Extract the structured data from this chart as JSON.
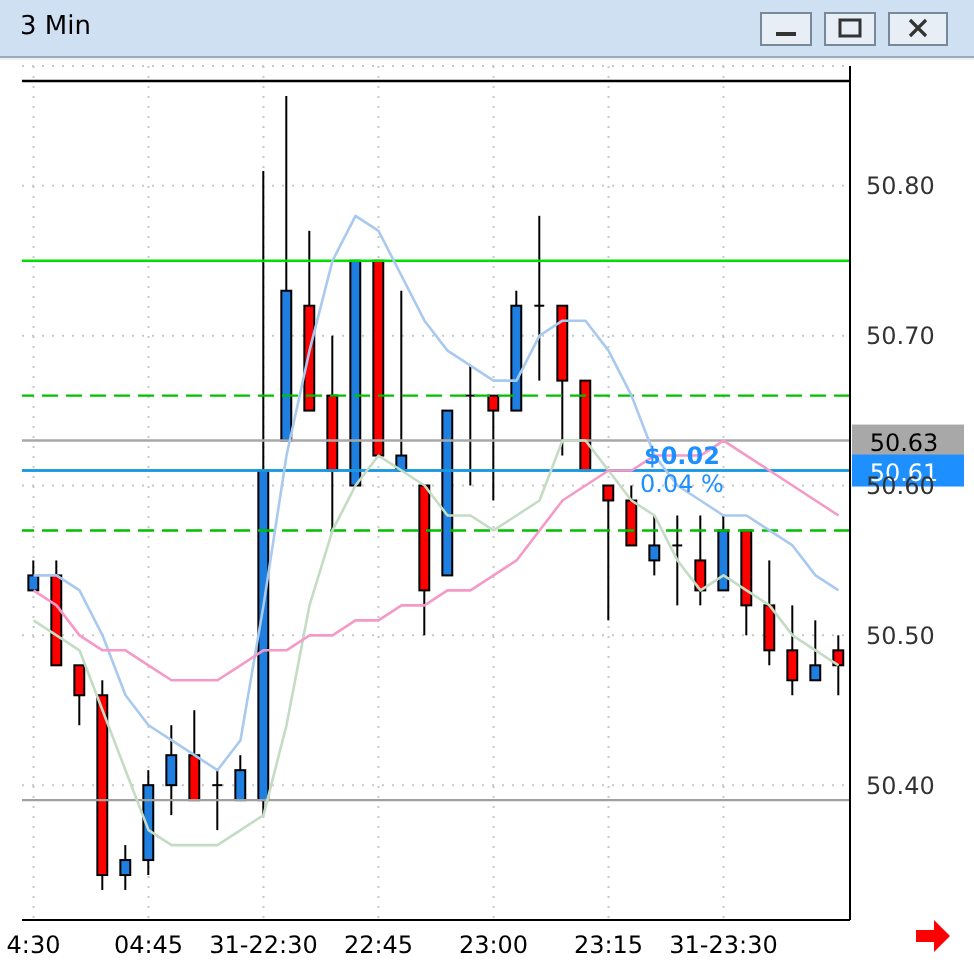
{
  "chart_data": {
    "type": "candlestick",
    "title": "3 Min",
    "categories": [
      "4:30",
      null,
      null,
      null,
      null,
      "04:45",
      null,
      null,
      null,
      null,
      "31-22:30",
      null,
      null,
      null,
      null,
      "22:45",
      null,
      null,
      null,
      null,
      "23:00",
      null,
      null,
      null,
      null,
      "23:15",
      null,
      null,
      null,
      null,
      "31-23:30",
      null,
      null,
      null,
      null,
      null
    ],
    "ohlc": [
      [
        50.53,
        50.55,
        50.53,
        50.54
      ],
      [
        50.54,
        50.55,
        50.48,
        50.48
      ],
      [
        50.48,
        50.48,
        50.44,
        50.46
      ],
      [
        50.46,
        50.47,
        50.33,
        50.34
      ],
      [
        50.34,
        50.36,
        50.33,
        50.35
      ],
      [
        50.35,
        50.41,
        50.34,
        50.4
      ],
      [
        50.4,
        50.44,
        50.38,
        50.42
      ],
      [
        50.42,
        50.45,
        50.39,
        50.39
      ],
      [
        50.4,
        50.41,
        50.37,
        50.4
      ],
      [
        50.39,
        50.42,
        50.39,
        50.41
      ],
      [
        50.39,
        50.81,
        50.38,
        50.61
      ],
      [
        50.63,
        50.86,
        50.63,
        50.73
      ],
      [
        50.72,
        50.77,
        50.65,
        50.65
      ],
      [
        50.66,
        50.7,
        50.57,
        50.61
      ],
      [
        50.6,
        50.75,
        50.6,
        50.75
      ],
      [
        50.75,
        50.75,
        50.62,
        50.62
      ],
      [
        50.61,
        50.73,
        50.61,
        50.62
      ],
      [
        50.6,
        50.6,
        50.5,
        50.53
      ],
      [
        50.54,
        50.65,
        50.54,
        50.65
      ],
      [
        50.66,
        50.68,
        50.6,
        50.66
      ],
      [
        50.66,
        50.66,
        50.59,
        50.65
      ],
      [
        50.65,
        50.73,
        50.65,
        50.72
      ],
      [
        50.72,
        50.78,
        50.67,
        50.72
      ],
      [
        50.72,
        50.72,
        50.62,
        50.67
      ],
      [
        50.67,
        50.67,
        50.61,
        50.61
      ],
      [
        50.6,
        50.6,
        50.51,
        50.59
      ],
      [
        50.59,
        50.6,
        50.56,
        50.56
      ],
      [
        50.55,
        50.58,
        50.54,
        50.56
      ],
      [
        50.56,
        50.58,
        50.52,
        50.56
      ],
      [
        50.55,
        50.58,
        50.52,
        50.53
      ],
      [
        50.53,
        50.58,
        50.53,
        50.57
      ],
      [
        50.57,
        50.57,
        50.5,
        50.52
      ],
      [
        50.52,
        50.55,
        50.48,
        50.49
      ],
      [
        50.49,
        50.52,
        50.46,
        50.47
      ],
      [
        50.47,
        50.51,
        50.47,
        50.48
      ],
      [
        50.49,
        50.5,
        50.46,
        50.48
      ]
    ],
    "colors": [
      "#1e7fe0",
      "#ff0000",
      "#ff0000",
      "#ff0000",
      "#1e7fe0",
      "#1e7fe0",
      "#1e7fe0",
      "#ff0000",
      "#000000",
      "#1e7fe0",
      "#1e7fe0",
      "#1e7fe0",
      "#ff0000",
      "#ff0000",
      "#1e7fe0",
      "#ff0000",
      "#1e7fe0",
      "#ff0000",
      "#1e7fe0",
      "#000000",
      "#ff0000",
      "#1e7fe0",
      "#000000",
      "#ff0000",
      "#ff0000",
      "#ff0000",
      "#ff0000",
      "#1e7fe0",
      "#000000",
      "#ff0000",
      "#1e7fe0",
      "#ff0000",
      "#ff0000",
      "#ff0000",
      "#1e7fe0",
      "#ff0000"
    ],
    "series": [
      {
        "type": "line",
        "color": "#a9c9ef",
        "values": [
          50.54,
          50.54,
          50.53,
          50.5,
          50.46,
          50.44,
          50.43,
          50.42,
          50.41,
          50.43,
          50.52,
          50.62,
          50.69,
          50.75,
          50.78,
          50.77,
          50.74,
          50.71,
          50.69,
          50.68,
          50.67,
          50.67,
          50.7,
          50.71,
          50.71,
          50.69,
          50.66,
          50.62,
          50.6,
          50.59,
          50.58,
          50.58,
          50.57,
          50.56,
          50.54,
          50.53
        ]
      },
      {
        "type": "line",
        "color": "#c3dcc3",
        "values": [
          50.51,
          50.5,
          50.49,
          50.45,
          50.41,
          50.37,
          50.36,
          50.36,
          50.36,
          50.37,
          50.38,
          50.44,
          50.52,
          50.57,
          50.6,
          50.62,
          50.61,
          50.6,
          50.58,
          50.58,
          50.57,
          50.58,
          50.59,
          50.63,
          50.63,
          50.61,
          50.59,
          50.58,
          50.55,
          50.53,
          50.54,
          50.53,
          50.52,
          50.5,
          50.49,
          50.48
        ]
      },
      {
        "type": "line",
        "color": "#f59ac8",
        "values": [
          50.53,
          50.52,
          50.5,
          50.49,
          50.49,
          50.48,
          50.47,
          50.47,
          50.47,
          50.48,
          50.49,
          50.49,
          50.5,
          50.5,
          50.51,
          50.51,
          50.52,
          50.52,
          50.53,
          50.53,
          50.54,
          50.55,
          50.57,
          50.59,
          50.6,
          50.61,
          50.61,
          50.62,
          50.62,
          50.62,
          50.63,
          50.62,
          50.61,
          50.6,
          50.59,
          50.58
        ]
      }
    ],
    "ref_lines": [
      {
        "axis": "y",
        "value": 50.87,
        "color": "#000000",
        "line_style": "solid"
      },
      {
        "axis": "y",
        "value": 50.75,
        "color": "#00e000",
        "line_style": "solid"
      },
      {
        "axis": "y",
        "value": 50.66,
        "color": "#00c000",
        "line_style": "dashed"
      },
      {
        "axis": "y",
        "value": 50.61,
        "color": "#00dd00",
        "line_style": "solid"
      },
      {
        "axis": "y",
        "value": 50.57,
        "color": "#00c000",
        "line_style": "dashed"
      },
      {
        "axis": "y",
        "value": 50.39,
        "color": "#a0a0a0",
        "line_style": "solid"
      },
      {
        "axis": "y",
        "value": 50.63,
        "label": "50.63",
        "color": "#a8a8a8",
        "line_style": "solid"
      },
      {
        "axis": "y",
        "value": 50.61,
        "label": "50.61",
        "color": "#1e8fff",
        "line_style": "solid"
      }
    ],
    "annotations": [
      "$0.02",
      "0.04 %"
    ],
    "ylim": [
      50.31,
      50.88
    ],
    "yticks": [
      {
        "value": 50.4,
        "label": "50.40"
      },
      {
        "value": 50.5,
        "label": "50.50"
      },
      {
        "value": 50.6,
        "label": "50.60"
      },
      {
        "value": 50.7,
        "label": "50.70"
      },
      {
        "value": 50.8,
        "label": "50.80"
      }
    ],
    "grid": true
  }
}
